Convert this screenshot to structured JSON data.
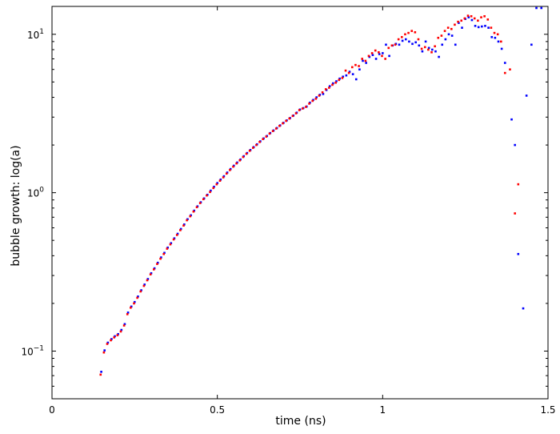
{
  "chart_data": {
    "type": "scatter",
    "title": "",
    "xlabel": "time (ns)",
    "ylabel": "bubble growth: log(a)",
    "xlim": [
      0,
      1.5
    ],
    "ylim": [
      0.05,
      15
    ],
    "yscale": "log",
    "grid": false,
    "x_ticks": [
      {
        "value": 0,
        "label": "0"
      },
      {
        "value": 0.5,
        "label": "0.5"
      },
      {
        "value": 1,
        "label": "1"
      },
      {
        "value": 1.5,
        "label": "1.5"
      }
    ],
    "y_ticks": [
      {
        "value": 0.1,
        "base": "10",
        "exp": "−1"
      },
      {
        "value": 1,
        "base": "10",
        "exp": "0"
      },
      {
        "value": 10,
        "base": "10",
        "exp": "1"
      }
    ],
    "series": [
      {
        "color": "#0000ff",
        "points": [
          [
            0.149,
            0.074
          ],
          [
            0.159,
            0.101
          ],
          [
            0.169,
            0.113
          ],
          [
            0.18,
            0.119
          ],
          [
            0.19,
            0.124
          ],
          [
            0.2,
            0.128
          ],
          [
            0.21,
            0.136
          ],
          [
            0.22,
            0.148
          ],
          [
            0.23,
            0.175
          ],
          [
            0.24,
            0.191
          ],
          [
            0.25,
            0.204
          ],
          [
            0.26,
            0.221
          ],
          [
            0.27,
            0.242
          ],
          [
            0.28,
            0.263
          ],
          [
            0.29,
            0.285
          ],
          [
            0.3,
            0.31
          ],
          [
            0.31,
            0.333
          ],
          [
            0.32,
            0.361
          ],
          [
            0.33,
            0.39
          ],
          [
            0.34,
            0.417
          ],
          [
            0.35,
            0.45
          ],
          [
            0.36,
            0.48
          ],
          [
            0.37,
            0.515
          ],
          [
            0.38,
            0.55
          ],
          [
            0.39,
            0.59
          ],
          [
            0.4,
            0.63
          ],
          [
            0.41,
            0.68
          ],
          [
            0.42,
            0.72
          ],
          [
            0.43,
            0.77
          ],
          [
            0.44,
            0.82
          ],
          [
            0.45,
            0.87
          ],
          [
            0.46,
            0.92
          ],
          [
            0.47,
            0.97
          ],
          [
            0.48,
            1.03
          ],
          [
            0.49,
            1.09
          ],
          [
            0.5,
            1.15
          ],
          [
            0.51,
            1.21
          ],
          [
            0.52,
            1.27
          ],
          [
            0.53,
            1.34
          ],
          [
            0.54,
            1.41
          ],
          [
            0.55,
            1.48
          ],
          [
            0.56,
            1.55
          ],
          [
            0.57,
            1.62
          ],
          [
            0.58,
            1.7
          ],
          [
            0.59,
            1.78
          ],
          [
            0.6,
            1.86
          ],
          [
            0.61,
            1.94
          ],
          [
            0.62,
            2.02
          ],
          [
            0.63,
            2.11
          ],
          [
            0.64,
            2.2
          ],
          [
            0.65,
            2.28
          ],
          [
            0.66,
            2.38
          ],
          [
            0.67,
            2.47
          ],
          [
            0.68,
            2.56
          ],
          [
            0.69,
            2.66
          ],
          [
            0.7,
            2.76
          ],
          [
            0.71,
            2.86
          ],
          [
            0.72,
            2.96
          ],
          [
            0.73,
            3.07
          ],
          [
            0.74,
            3.2
          ],
          [
            0.75,
            3.35
          ],
          [
            0.76,
            3.42
          ],
          [
            0.77,
            3.5
          ],
          [
            0.78,
            3.7
          ],
          [
            0.79,
            3.85
          ],
          [
            0.8,
            4.0
          ],
          [
            0.81,
            4.15
          ],
          [
            0.82,
            4.2
          ],
          [
            0.83,
            4.45
          ],
          [
            0.84,
            4.7
          ],
          [
            0.85,
            4.9
          ],
          [
            0.86,
            5.05
          ],
          [
            0.87,
            5.25
          ],
          [
            0.88,
            5.4
          ],
          [
            0.89,
            5.5
          ],
          [
            0.9,
            5.8
          ],
          [
            0.91,
            5.6
          ],
          [
            0.92,
            5.2
          ],
          [
            0.93,
            6.0
          ],
          [
            0.94,
            6.8
          ],
          [
            0.95,
            6.6
          ],
          [
            0.96,
            7.2
          ],
          [
            0.97,
            7.4
          ],
          [
            0.98,
            7.0
          ],
          [
            0.99,
            7.5
          ],
          [
            1.0,
            7.6
          ],
          [
            1.01,
            8.6
          ],
          [
            1.02,
            7.3
          ],
          [
            1.03,
            8.5
          ],
          [
            1.04,
            8.7
          ],
          [
            1.05,
            8.6
          ],
          [
            1.06,
            9.1
          ],
          [
            1.07,
            9.3
          ],
          [
            1.08,
            9.0
          ],
          [
            1.09,
            8.7
          ],
          [
            1.1,
            8.9
          ],
          [
            1.11,
            8.5
          ],
          [
            1.12,
            7.8
          ],
          [
            1.13,
            9.0
          ],
          [
            1.14,
            8.2
          ],
          [
            1.15,
            8.0
          ],
          [
            1.16,
            7.8
          ],
          [
            1.17,
            7.2
          ],
          [
            1.18,
            8.6
          ],
          [
            1.19,
            9.3
          ],
          [
            1.2,
            10.0
          ],
          [
            1.21,
            9.8
          ],
          [
            1.22,
            8.6
          ],
          [
            1.23,
            11.8
          ],
          [
            1.24,
            11.0
          ],
          [
            1.25,
            12.5
          ],
          [
            1.26,
            12.8
          ],
          [
            1.27,
            12.3
          ],
          [
            1.28,
            11.3
          ],
          [
            1.29,
            11.1
          ],
          [
            1.3,
            11.2
          ],
          [
            1.31,
            11.3
          ],
          [
            1.32,
            11.0
          ],
          [
            1.33,
            9.6
          ],
          [
            1.34,
            9.5
          ],
          [
            1.35,
            9.0
          ],
          [
            1.36,
            8.1
          ],
          [
            1.37,
            6.6
          ],
          [
            1.39,
            2.9
          ],
          [
            1.4,
            2.0
          ],
          [
            1.41,
            0.41
          ],
          [
            1.425,
            0.186
          ],
          [
            1.435,
            4.1
          ],
          [
            1.45,
            8.6
          ],
          [
            1.465,
            15.0
          ],
          [
            1.48,
            15.0
          ]
        ]
      },
      {
        "color": "#ff0000",
        "points": [
          [
            0.147,
            0.071
          ],
          [
            0.157,
            0.098
          ],
          [
            0.167,
            0.111
          ],
          [
            0.178,
            0.117
          ],
          [
            0.188,
            0.122
          ],
          [
            0.198,
            0.126
          ],
          [
            0.208,
            0.133
          ],
          [
            0.218,
            0.145
          ],
          [
            0.228,
            0.171
          ],
          [
            0.238,
            0.188
          ],
          [
            0.248,
            0.2
          ],
          [
            0.258,
            0.217
          ],
          [
            0.268,
            0.238
          ],
          [
            0.278,
            0.258
          ],
          [
            0.288,
            0.28
          ],
          [
            0.298,
            0.305
          ],
          [
            0.308,
            0.328
          ],
          [
            0.318,
            0.355
          ],
          [
            0.328,
            0.383
          ],
          [
            0.338,
            0.41
          ],
          [
            0.348,
            0.443
          ],
          [
            0.358,
            0.472
          ],
          [
            0.368,
            0.507
          ],
          [
            0.378,
            0.541
          ],
          [
            0.388,
            0.58
          ],
          [
            0.398,
            0.62
          ],
          [
            0.408,
            0.67
          ],
          [
            0.418,
            0.71
          ],
          [
            0.428,
            0.76
          ],
          [
            0.438,
            0.81
          ],
          [
            0.448,
            0.86
          ],
          [
            0.458,
            0.91
          ],
          [
            0.468,
            0.96
          ],
          [
            0.478,
            1.01
          ],
          [
            0.488,
            1.07
          ],
          [
            0.498,
            1.13
          ],
          [
            0.508,
            1.19
          ],
          [
            0.518,
            1.25
          ],
          [
            0.528,
            1.32
          ],
          [
            0.538,
            1.39
          ],
          [
            0.548,
            1.46
          ],
          [
            0.558,
            1.53
          ],
          [
            0.568,
            1.6
          ],
          [
            0.578,
            1.68
          ],
          [
            0.588,
            1.76
          ],
          [
            0.598,
            1.84
          ],
          [
            0.608,
            1.92
          ],
          [
            0.618,
            2.0
          ],
          [
            0.628,
            2.09
          ],
          [
            0.638,
            2.18
          ],
          [
            0.648,
            2.26
          ],
          [
            0.658,
            2.36
          ],
          [
            0.668,
            2.45
          ],
          [
            0.678,
            2.54
          ],
          [
            0.688,
            2.64
          ],
          [
            0.698,
            2.74
          ],
          [
            0.708,
            2.84
          ],
          [
            0.718,
            2.94
          ],
          [
            0.728,
            3.05
          ],
          [
            0.738,
            3.17
          ],
          [
            0.748,
            3.32
          ],
          [
            0.758,
            3.4
          ],
          [
            0.768,
            3.48
          ],
          [
            0.778,
            3.65
          ],
          [
            0.788,
            3.8
          ],
          [
            0.798,
            3.92
          ],
          [
            0.808,
            4.1
          ],
          [
            0.818,
            4.3
          ],
          [
            0.828,
            4.5
          ],
          [
            0.838,
            4.6
          ],
          [
            0.848,
            4.8
          ],
          [
            0.858,
            4.95
          ],
          [
            0.868,
            5.15
          ],
          [
            0.878,
            5.3
          ],
          [
            0.888,
            5.9
          ],
          [
            0.898,
            5.7
          ],
          [
            0.908,
            6.2
          ],
          [
            0.918,
            6.4
          ],
          [
            0.928,
            6.3
          ],
          [
            0.938,
            7.0
          ],
          [
            0.948,
            6.8
          ],
          [
            0.958,
            7.3
          ],
          [
            0.968,
            7.6
          ],
          [
            0.978,
            7.9
          ],
          [
            0.988,
            7.7
          ],
          [
            0.998,
            7.3
          ],
          [
            1.008,
            7.0
          ],
          [
            1.018,
            8.2
          ],
          [
            1.028,
            8.5
          ],
          [
            1.038,
            8.6
          ],
          [
            1.048,
            9.3
          ],
          [
            1.058,
            9.6
          ],
          [
            1.068,
            10.0
          ],
          [
            1.078,
            10.2
          ],
          [
            1.088,
            10.5
          ],
          [
            1.098,
            10.3
          ],
          [
            1.108,
            9.3
          ],
          [
            1.118,
            8.1
          ],
          [
            1.128,
            8.3
          ],
          [
            1.138,
            8.0
          ],
          [
            1.148,
            7.7
          ],
          [
            1.158,
            8.4
          ],
          [
            1.168,
            9.5
          ],
          [
            1.178,
            9.8
          ],
          [
            1.188,
            10.5
          ],
          [
            1.198,
            11.0
          ],
          [
            1.208,
            10.8
          ],
          [
            1.218,
            11.5
          ],
          [
            1.228,
            12.0
          ],
          [
            1.238,
            12.2
          ],
          [
            1.248,
            12.6
          ],
          [
            1.258,
            13.1
          ],
          [
            1.268,
            13.0
          ],
          [
            1.278,
            12.6
          ],
          [
            1.288,
            12.2
          ],
          [
            1.298,
            12.8
          ],
          [
            1.308,
            13.0
          ],
          [
            1.318,
            12.4
          ],
          [
            1.328,
            11.0
          ],
          [
            1.338,
            10.2
          ],
          [
            1.348,
            10.0
          ],
          [
            1.358,
            9.0
          ],
          [
            1.37,
            5.7
          ],
          [
            1.385,
            6.0
          ],
          [
            1.4,
            0.74
          ],
          [
            1.41,
            1.13
          ]
        ]
      }
    ]
  }
}
